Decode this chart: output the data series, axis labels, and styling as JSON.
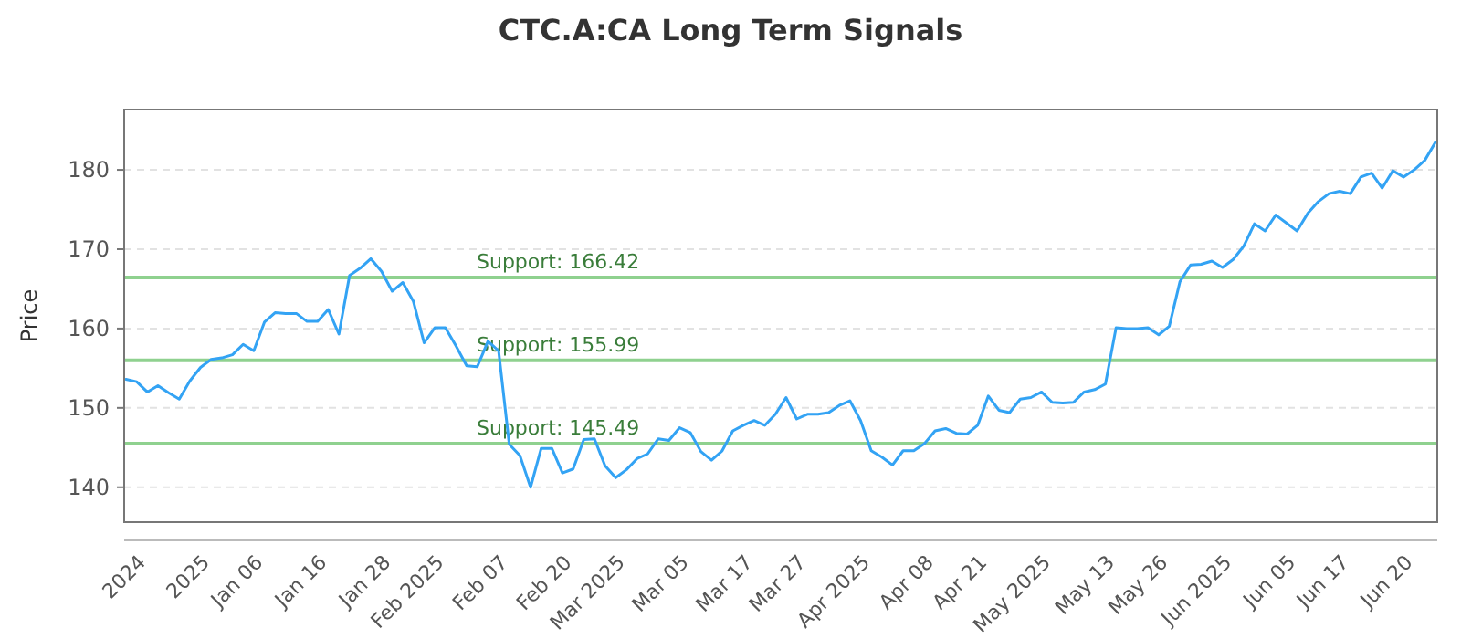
{
  "chart_data": {
    "type": "line",
    "title": "CTC.A:CA Long Term Signals",
    "ylabel": "Price",
    "categories": [
      null,
      null,
      "2024",
      null,
      null,
      null,
      null,
      null,
      "2025",
      null,
      null,
      null,
      null,
      "Jan 06",
      null,
      null,
      null,
      null,
      null,
      "Jan 16",
      null,
      null,
      null,
      null,
      null,
      "Jan 28",
      null,
      null,
      null,
      null,
      "Feb 2025",
      null,
      null,
      null,
      null,
      null,
      "Feb 07",
      null,
      null,
      null,
      null,
      null,
      "Feb 20",
      null,
      null,
      null,
      null,
      "Mar 2025",
      null,
      null,
      null,
      null,
      null,
      "Mar 05",
      null,
      null,
      null,
      null,
      null,
      "Mar 17",
      null,
      null,
      null,
      null,
      "Mar 27",
      null,
      null,
      null,
      null,
      null,
      "Apr 2025",
      null,
      null,
      null,
      null,
      null,
      "Apr 08",
      null,
      null,
      null,
      null,
      "Apr 21",
      null,
      null,
      null,
      null,
      null,
      "May 2025",
      null,
      null,
      null,
      null,
      null,
      "May 13",
      null,
      null,
      null,
      null,
      "May 26",
      null,
      null,
      null,
      null,
      null,
      "Jun 2025",
      null,
      null,
      null,
      null,
      null,
      "Jun 05",
      null,
      null,
      null,
      null,
      "Jun 17",
      null,
      null,
      null,
      null,
      null,
      "Jun 20",
      null,
      null
    ],
    "series": [
      {
        "color": "#33a3f4",
        "values": [
          153.6,
          153.3,
          152.0,
          152.8,
          151.9,
          151.1,
          153.4,
          155.1,
          156.1,
          156.3,
          156.7,
          158.0,
          157.2,
          160.8,
          162.0,
          161.9,
          161.9,
          160.9,
          160.9,
          162.4,
          159.3,
          166.7,
          167.6,
          168.8,
          167.2,
          164.7,
          165.8,
          163.4,
          158.2,
          160.1,
          160.1,
          157.8,
          155.3,
          155.2,
          158.4,
          157.2,
          145.4,
          144.0,
          140.0,
          144.9,
          144.9,
          141.8,
          142.3,
          146.0,
          146.1,
          142.7,
          141.2,
          142.2,
          143.6,
          144.2,
          146.1,
          145.9,
          147.5,
          146.9,
          144.5,
          143.4,
          144.6,
          147.1,
          147.8,
          148.4,
          147.8,
          149.2,
          151.3,
          148.6,
          149.2,
          149.2,
          149.4,
          150.3,
          150.9,
          148.4,
          144.6,
          143.8,
          142.8,
          144.6,
          144.6,
          145.5,
          147.1,
          147.4,
          146.8,
          146.7,
          147.8,
          151.5,
          149.7,
          149.4,
          151.1,
          151.3,
          152.0,
          150.7,
          150.6,
          150.7,
          152.0,
          152.3,
          153.0,
          160.1,
          160.0,
          160.0,
          160.1,
          159.2,
          160.3,
          165.9,
          168.0,
          168.1,
          168.5,
          167.7,
          168.7,
          170.4,
          173.2,
          172.3,
          174.3,
          173.3,
          172.3,
          174.5,
          176.0,
          177.0,
          177.3,
          177.0,
          179.1,
          179.6,
          177.7,
          179.9,
          179.1,
          180.0,
          181.2,
          183.5
        ]
      }
    ],
    "ylim": [
      135.6,
      187.6
    ],
    "yticks": [
      140,
      150,
      160,
      170,
      180
    ],
    "grid": "y",
    "ref_lines": [
      {
        "axis": "y",
        "value": 166.42,
        "label": "Support: 166.42",
        "color": "#8fd18f"
      },
      {
        "axis": "y",
        "value": 155.99,
        "label": "Support: 155.99",
        "color": "#8fd18f"
      },
      {
        "axis": "y",
        "value": 145.49,
        "label": "Support: 145.49",
        "color": "#8fd18f"
      }
    ]
  }
}
